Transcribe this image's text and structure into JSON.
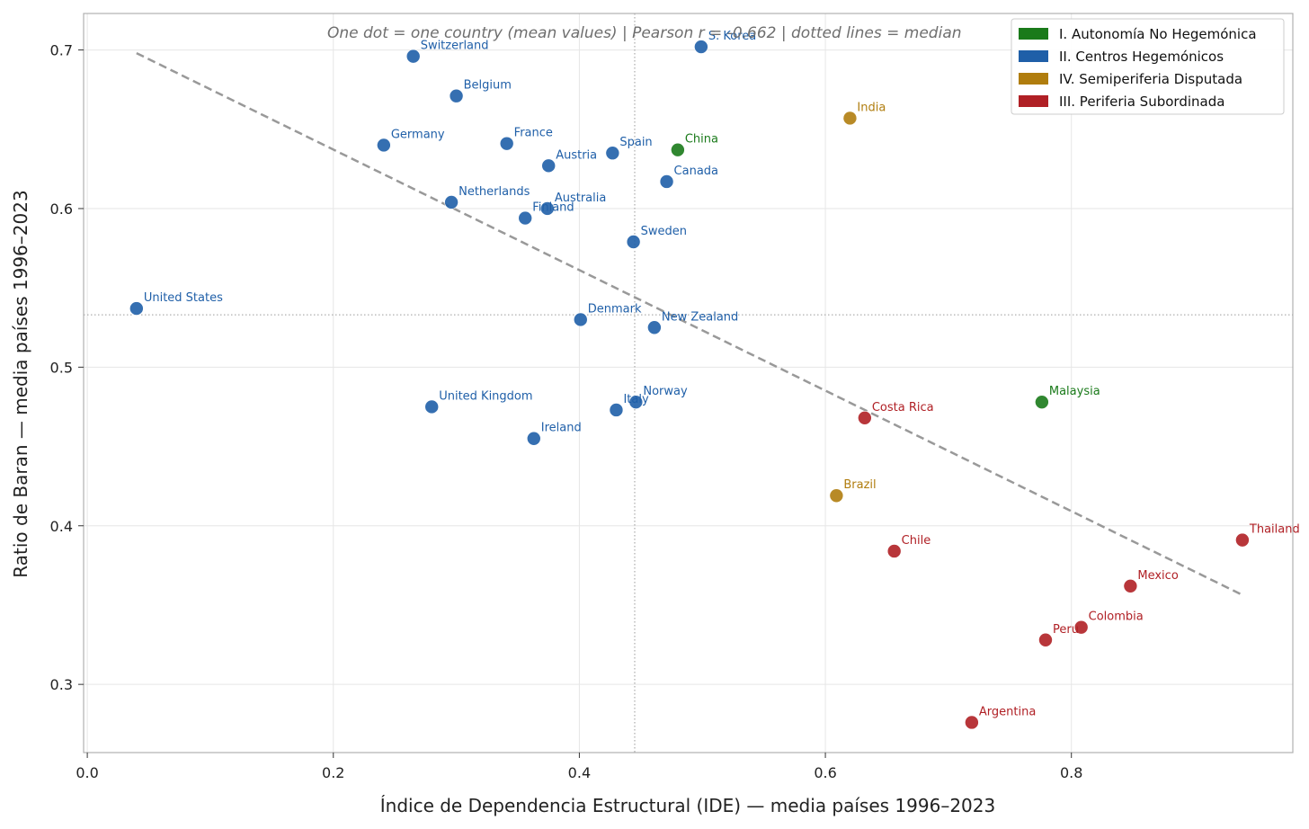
{
  "chart_data": {
    "type": "scatter",
    "subtitle": "One dot = one country (mean values)  |  Pearson r = -0.662  |  dotted lines = median",
    "xlabel": "Índice de Dependencia Estructural (IDE)  —  media países 1996–2023",
    "ylabel": "Ratio de Baran  —  media países 1996–2023",
    "xlim": [
      -0.003,
      0.98
    ],
    "ylim": [
      0.257,
      0.723
    ],
    "xticks": [
      "0.0",
      "0.2",
      "0.4",
      "0.6",
      "0.8"
    ],
    "yticks": [
      "0.3",
      "0.4",
      "0.5",
      "0.6",
      "0.7"
    ],
    "grid": true,
    "legend_position": "top-right",
    "median_x": 0.445,
    "median_y": 0.533,
    "trendline": {
      "x": [
        0.04,
        0.94
      ],
      "y": [
        0.698,
        0.356
      ],
      "style": "dashed"
    },
    "series": [
      {
        "name": "I. Autonomía No Hegemónica",
        "color": "#1a7a1a",
        "points": [
          {
            "label": "China",
            "x": 0.48,
            "y": 0.637
          },
          {
            "label": "Malaysia",
            "x": 0.776,
            "y": 0.478
          }
        ]
      },
      {
        "name": "II. Centros Hegemónicos",
        "color": "#1f5fa8",
        "points": [
          {
            "label": "S. Korea",
            "x": 0.499,
            "y": 0.702
          },
          {
            "label": "Switzerland",
            "x": 0.265,
            "y": 0.696
          },
          {
            "label": "Belgium",
            "x": 0.3,
            "y": 0.671
          },
          {
            "label": "Germany",
            "x": 0.241,
            "y": 0.64
          },
          {
            "label": "France",
            "x": 0.341,
            "y": 0.641
          },
          {
            "label": "Spain",
            "x": 0.427,
            "y": 0.635
          },
          {
            "label": "Austria",
            "x": 0.375,
            "y": 0.627
          },
          {
            "label": "Canada",
            "x": 0.471,
            "y": 0.617
          },
          {
            "label": "Netherlands",
            "x": 0.296,
            "y": 0.604
          },
          {
            "label": "Australia",
            "x": 0.374,
            "y": 0.6
          },
          {
            "label": "Finland",
            "x": 0.356,
            "y": 0.594
          },
          {
            "label": "Sweden",
            "x": 0.444,
            "y": 0.579
          },
          {
            "label": "United States",
            "x": 0.04,
            "y": 0.537
          },
          {
            "label": "Denmark",
            "x": 0.401,
            "y": 0.53
          },
          {
            "label": "New Zealand",
            "x": 0.461,
            "y": 0.525
          },
          {
            "label": "United Kingdom",
            "x": 0.28,
            "y": 0.475
          },
          {
            "label": "Norway",
            "x": 0.446,
            "y": 0.478
          },
          {
            "label": "Italy",
            "x": 0.43,
            "y": 0.473
          },
          {
            "label": "Ireland",
            "x": 0.363,
            "y": 0.455
          }
        ]
      },
      {
        "name": "IV. Semiperiferia Disputada",
        "color": "#b07d0e",
        "points": [
          {
            "label": "India",
            "x": 0.62,
            "y": 0.657
          },
          {
            "label": "Brazil",
            "x": 0.609,
            "y": 0.419
          }
        ]
      },
      {
        "name": "III. Periferia Subordinada",
        "color": "#b02025",
        "points": [
          {
            "label": "Costa Rica",
            "x": 0.632,
            "y": 0.468
          },
          {
            "label": "Chile",
            "x": 0.656,
            "y": 0.384
          },
          {
            "label": "Thailand",
            "x": 0.939,
            "y": 0.391
          },
          {
            "label": "Mexico",
            "x": 0.848,
            "y": 0.362
          },
          {
            "label": "Colombia",
            "x": 0.808,
            "y": 0.336
          },
          {
            "label": "Peru",
            "x": 0.779,
            "y": 0.328
          },
          {
            "label": "Argentina",
            "x": 0.719,
            "y": 0.276
          }
        ]
      }
    ]
  }
}
